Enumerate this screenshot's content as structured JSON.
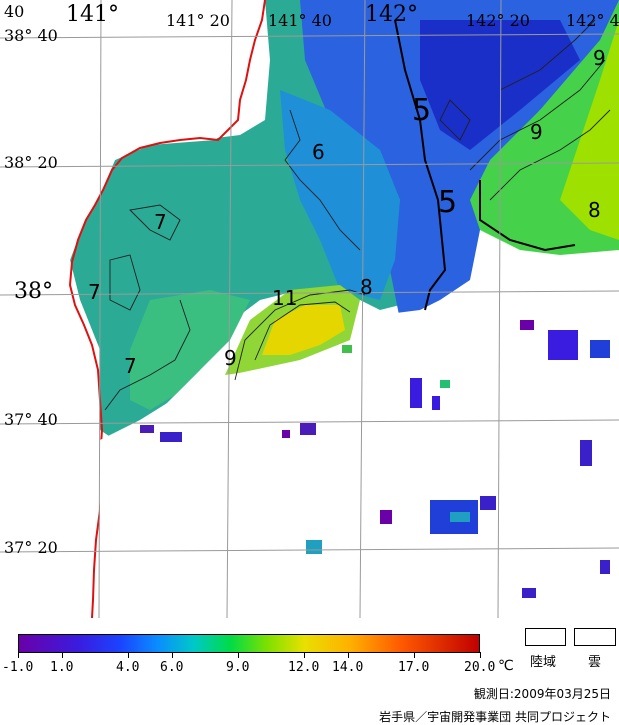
{
  "map": {
    "lon_labels": [
      {
        "text": "141°",
        "big": true
      },
      {
        "text": "141° 20",
        "big": false
      },
      {
        "text": "141° 40",
        "big": false
      },
      {
        "text": "142°",
        "big": true
      },
      {
        "text": "142° 20",
        "big": false
      },
      {
        "text": "142° 4",
        "big": false
      }
    ],
    "edge_lon_label": "40",
    "lat_labels": [
      "38° 40",
      "38° 20",
      "38°",
      "37° 40",
      "37° 20"
    ],
    "contour_labels": [
      "5",
      "5",
      "6",
      "7",
      "7",
      "7",
      "8",
      "8",
      "9",
      "9",
      "9",
      "11"
    ],
    "contour_units": "°C"
  },
  "colorbar": {
    "ticks": [
      "-1.0",
      "1.0",
      "4.0",
      "6.0",
      "9.0",
      "12.0",
      "14.0",
      "17.0",
      "20.0"
    ],
    "unit": "℃",
    "min": -1.0,
    "max": 20.0,
    "colors": [
      "#6a00a8",
      "#1a44ff",
      "#00c8c8",
      "#00dc46",
      "#e8e000",
      "#ff5a00",
      "#c00000"
    ]
  },
  "legend": {
    "land": "陸域",
    "cloud": "雲"
  },
  "footer": {
    "observation_date": "観測日:2009年03月25日",
    "credit": "岩手県／宇宙開発事業団 共同プロジェクト"
  }
}
